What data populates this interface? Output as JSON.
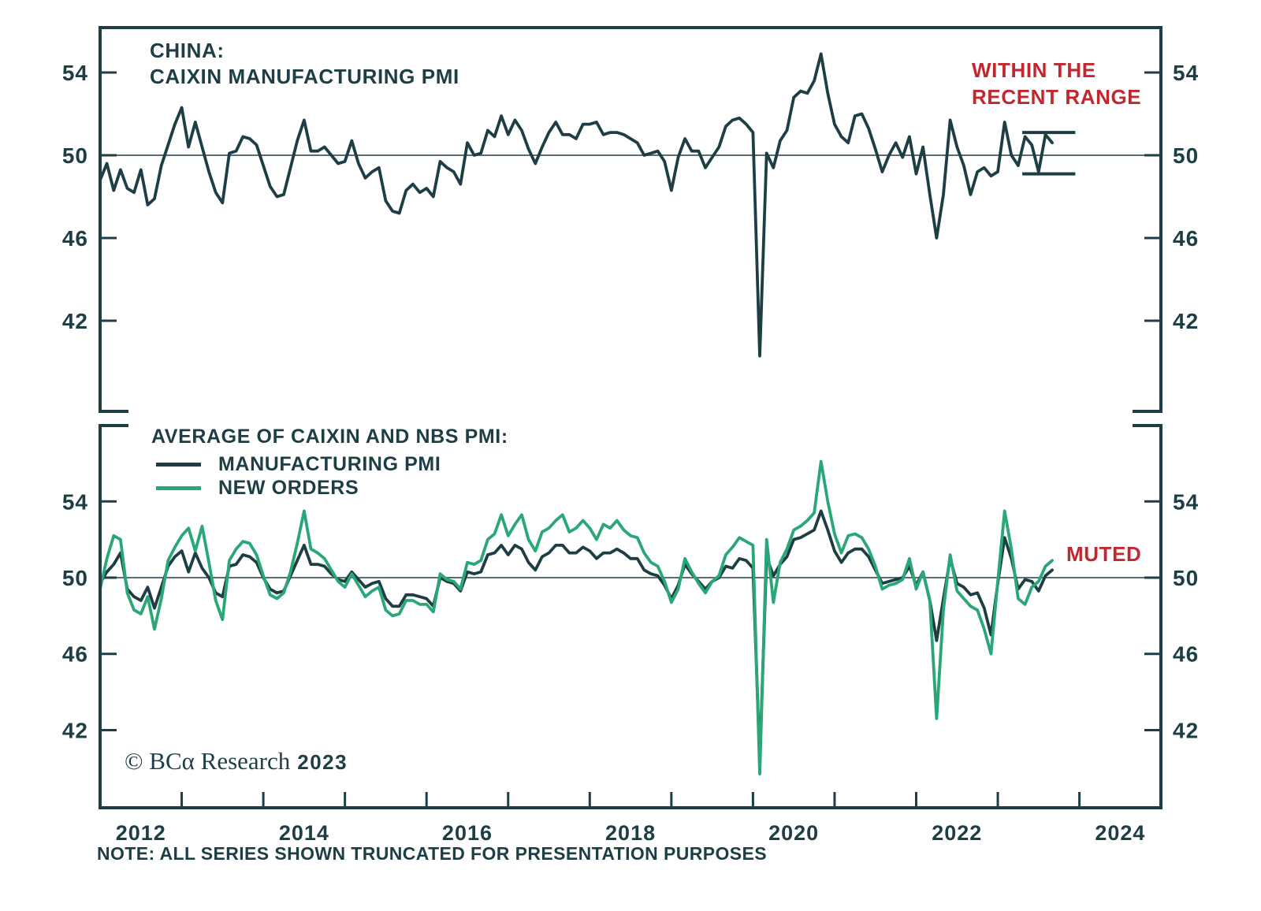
{
  "colors": {
    "text": "#1d3e45",
    "frame": "#1d3e45",
    "line_dark": "#1d3e45",
    "line_green": "#2aa776",
    "annotation_red": "#c2262e",
    "background": "#ffffff"
  },
  "footer": {
    "copyright": "© BCα Research",
    "year": "2023",
    "note": "NOTE: ALL SERIES SHOWN TRUNCATED FOR PRESENTATION PURPOSES"
  },
  "x_axis": {
    "start_year": 2012,
    "end_year": 2025,
    "labels": [
      "2012",
      "2014",
      "2016",
      "2018",
      "2020",
      "2022",
      "2024"
    ],
    "minor_tick_years": [
      2013,
      2014,
      2015,
      2016,
      2017,
      2018,
      2019,
      2020,
      2021,
      2022,
      2023,
      2024
    ]
  },
  "chart_data": [
    {
      "type": "line",
      "panel": "top",
      "title": "CHINA: CAIXIN MANUFACTURING PMI",
      "title_lines": [
        "CHINA:",
        "CAIXIN MANUFACTURING PMI"
      ],
      "annotation": "WITHIN THE RECENT RANGE",
      "annotation_lines": [
        "WITHIN THE",
        "RECENT RANGE"
      ],
      "x_start": "2012-01",
      "x_end": "2023-09",
      "frequency": "monthly",
      "xlim": [
        2012,
        2025
      ],
      "ylim": [
        37.6,
        56.2
      ],
      "yticks": [
        54,
        50,
        46,
        42
      ],
      "reference_line": 50,
      "recent_range": {
        "high": 51.1,
        "low": 49.1,
        "start": 2023.3,
        "end": 2023.95
      },
      "series": [
        {
          "name": "CAIXIN MANUFACTURING PMI",
          "color": "#1d3e45",
          "values": [
            48.8,
            49.6,
            48.3,
            49.3,
            48.4,
            48.2,
            49.3,
            47.6,
            47.9,
            49.5,
            50.5,
            51.5,
            52.3,
            50.4,
            51.6,
            50.4,
            49.2,
            48.2,
            47.7,
            50.1,
            50.2,
            50.9,
            50.8,
            50.5,
            49.5,
            48.5,
            48.0,
            48.1,
            49.4,
            50.7,
            51.7,
            50.2,
            50.2,
            50.4,
            50.0,
            49.6,
            49.7,
            50.7,
            49.6,
            48.9,
            49.2,
            49.4,
            47.8,
            47.3,
            47.2,
            48.3,
            48.6,
            48.2,
            48.4,
            48.0,
            49.7,
            49.4,
            49.2,
            48.6,
            50.6,
            50.0,
            50.1,
            51.2,
            50.9,
            51.9,
            51.0,
            51.7,
            51.2,
            50.3,
            49.6,
            50.4,
            51.1,
            51.6,
            51.0,
            51.0,
            50.8,
            51.5,
            51.5,
            51.6,
            51.0,
            51.1,
            51.1,
            51.0,
            50.8,
            50.6,
            50.0,
            50.1,
            50.2,
            49.7,
            48.3,
            49.9,
            50.8,
            50.2,
            50.2,
            49.4,
            49.9,
            50.4,
            51.4,
            51.7,
            51.8,
            51.5,
            51.1,
            40.3,
            50.1,
            49.4,
            50.7,
            51.2,
            52.8,
            53.1,
            53.0,
            53.6,
            54.9,
            53.0,
            51.5,
            50.9,
            50.6,
            51.9,
            52.0,
            51.3,
            50.3,
            49.2,
            50.0,
            50.6,
            49.9,
            50.9,
            49.1,
            50.4,
            48.1,
            46.0,
            48.1,
            51.7,
            50.4,
            49.5,
            48.1,
            49.2,
            49.4,
            49.0,
            49.2,
            51.6,
            50.0,
            49.5,
            50.9,
            50.5,
            49.2,
            51.0,
            50.6
          ]
        }
      ]
    },
    {
      "type": "line",
      "panel": "bottom",
      "title": "AVERAGE OF CAIXIN AND NBS PMI",
      "legend_title": "AVERAGE OF CAIXIN AND NBS PMI:",
      "annotation": "MUTED",
      "x_start": "2012-01",
      "x_end": "2023-09",
      "frequency": "monthly",
      "xlim": [
        2012,
        2025
      ],
      "ylim": [
        37.9,
        58.0
      ],
      "yticks": [
        54,
        50,
        46,
        42
      ],
      "reference_line": 50,
      "series": [
        {
          "name": "MANUFACTURING PMI",
          "color": "#1d3e45",
          "values": [
            49.7,
            50.3,
            50.7,
            51.3,
            49.4,
            49.0,
            48.8,
            49.5,
            48.4,
            49.5,
            50.6,
            51.1,
            51.4,
            50.3,
            51.3,
            50.5,
            50.0,
            49.2,
            49.0,
            50.6,
            50.7,
            51.2,
            51.1,
            50.8,
            50.0,
            49.4,
            49.2,
            49.3,
            50.1,
            50.9,
            51.7,
            50.7,
            50.7,
            50.6,
            50.2,
            49.9,
            49.8,
            50.3,
            49.9,
            49.5,
            49.7,
            49.8,
            48.9,
            48.5,
            48.5,
            49.1,
            49.1,
            49.0,
            48.9,
            48.5,
            50.0,
            49.8,
            49.7,
            49.3,
            50.3,
            50.2,
            50.3,
            51.2,
            51.3,
            51.7,
            51.2,
            51.7,
            51.5,
            50.8,
            50.4,
            51.1,
            51.3,
            51.7,
            51.7,
            51.3,
            51.3,
            51.6,
            51.4,
            51.0,
            51.3,
            51.3,
            51.5,
            51.3,
            51.0,
            51.0,
            50.4,
            50.2,
            50.1,
            49.6,
            48.9,
            49.6,
            50.7,
            50.2,
            49.8,
            49.4,
            49.8,
            50.0,
            50.6,
            50.5,
            51.0,
            50.9,
            50.5,
            40.4,
            51.1,
            50.1,
            50.7,
            51.1,
            52.0,
            52.1,
            52.3,
            52.5,
            53.5,
            52.5,
            51.4,
            50.8,
            51.3,
            51.5,
            51.5,
            51.1,
            50.4,
            49.7,
            49.8,
            49.9,
            50.0,
            50.6,
            49.6,
            50.3,
            48.8,
            46.7,
            48.9,
            51.0,
            49.7,
            49.5,
            49.1,
            49.2,
            48.4,
            47.0,
            49.7,
            52.1,
            51.0,
            49.4,
            49.9,
            49.8,
            49.3,
            50.1,
            50.4
          ]
        },
        {
          "name": "NEW ORDERS",
          "color": "#2aa776",
          "values": [
            49.4,
            51.0,
            52.2,
            52.0,
            49.2,
            48.3,
            48.1,
            49.0,
            47.3,
            48.9,
            50.9,
            51.6,
            52.2,
            52.6,
            51.4,
            52.7,
            50.8,
            48.8,
            47.8,
            50.9,
            51.5,
            51.9,
            51.8,
            51.2,
            50.1,
            49.1,
            48.9,
            49.2,
            50.3,
            51.8,
            53.5,
            51.5,
            51.3,
            51.0,
            50.4,
            49.8,
            49.5,
            50.2,
            49.6,
            49.0,
            49.3,
            49.5,
            48.3,
            48.0,
            48.1,
            48.8,
            48.8,
            48.6,
            48.6,
            48.2,
            50.2,
            49.9,
            49.8,
            49.4,
            50.8,
            50.7,
            50.9,
            52.0,
            52.3,
            53.3,
            52.2,
            52.8,
            53.3,
            52.0,
            51.4,
            52.4,
            52.6,
            53.0,
            53.3,
            52.4,
            52.6,
            53.0,
            52.6,
            52.0,
            52.8,
            52.6,
            53.0,
            52.5,
            52.2,
            52.1,
            51.3,
            50.8,
            50.6,
            49.8,
            48.7,
            49.4,
            51.0,
            50.3,
            49.7,
            49.2,
            49.8,
            50.1,
            51.2,
            51.6,
            52.1,
            51.9,
            51.7,
            39.7,
            52.0,
            48.7,
            50.8,
            51.5,
            52.5,
            52.7,
            53.0,
            53.4,
            56.1,
            54.0,
            52.3,
            51.3,
            52.2,
            52.3,
            52.1,
            51.5,
            50.6,
            49.4,
            49.6,
            49.7,
            49.9,
            51.0,
            49.4,
            50.3,
            48.8,
            42.6,
            48.3,
            51.2,
            49.3,
            48.9,
            48.5,
            48.3,
            47.3,
            46.0,
            49.8,
            53.5,
            51.5,
            48.9,
            48.6,
            49.5,
            49.8,
            50.6,
            50.9
          ]
        }
      ]
    }
  ]
}
